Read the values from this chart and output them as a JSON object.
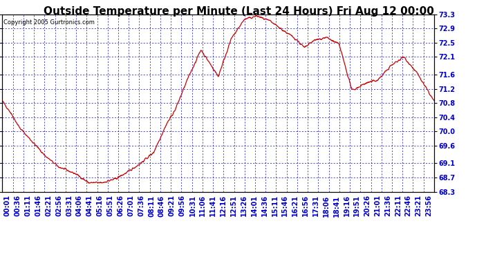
{
  "title": "Outside Temperature per Minute (Last 24 Hours) Fri Aug 12 00:00",
  "copyright": "Copyright 2005 Gurtronics.com",
  "ylabel_right_ticks": [
    73.3,
    72.9,
    72.5,
    72.1,
    71.6,
    71.2,
    70.8,
    70.4,
    70.0,
    69.6,
    69.1,
    68.7,
    68.3
  ],
  "ymin": 68.3,
  "ymax": 73.3,
  "line_color": "#cc0000",
  "bg_color": "#ffffff",
  "grid_color": "#0000cc",
  "title_fontsize": 11,
  "copyright_fontsize": 6,
  "tick_label_color": "#0000cc",
  "tick_label_fontsize": 7,
  "x_tick_labels": [
    "00:01",
    "00:36",
    "01:11",
    "01:46",
    "02:21",
    "02:56",
    "03:31",
    "04:06",
    "04:41",
    "05:16",
    "05:51",
    "06:26",
    "07:01",
    "07:36",
    "08:11",
    "08:46",
    "09:21",
    "09:56",
    "10:31",
    "11:06",
    "11:41",
    "12:16",
    "12:51",
    "13:26",
    "14:01",
    "14:36",
    "15:11",
    "15:46",
    "16:21",
    "16:56",
    "17:31",
    "18:06",
    "18:41",
    "19:16",
    "19:51",
    "20:26",
    "21:01",
    "21:36",
    "22:11",
    "22:46",
    "23:21",
    "23:56"
  ],
  "keypoints_t": [
    0,
    0.018,
    0.04,
    0.07,
    0.1,
    0.13,
    0.17,
    0.2,
    0.23,
    0.26,
    0.29,
    0.32,
    0.35,
    0.38,
    0.4,
    0.43,
    0.46,
    0.5,
    0.53,
    0.56,
    0.59,
    0.62,
    0.65,
    0.68,
    0.7,
    0.72,
    0.75,
    0.78,
    0.81,
    0.84,
    0.87,
    0.9,
    0.93,
    0.96,
    1.0
  ],
  "keypoints_v": [
    70.85,
    70.55,
    70.1,
    69.7,
    69.3,
    69.0,
    68.8,
    68.55,
    68.55,
    68.65,
    68.85,
    69.1,
    69.4,
    70.2,
    70.6,
    71.5,
    72.3,
    71.55,
    72.6,
    73.15,
    73.25,
    73.1,
    72.85,
    72.6,
    72.35,
    72.55,
    72.65,
    72.45,
    71.15,
    71.35,
    71.45,
    71.85,
    72.1,
    71.65,
    70.85
  ]
}
